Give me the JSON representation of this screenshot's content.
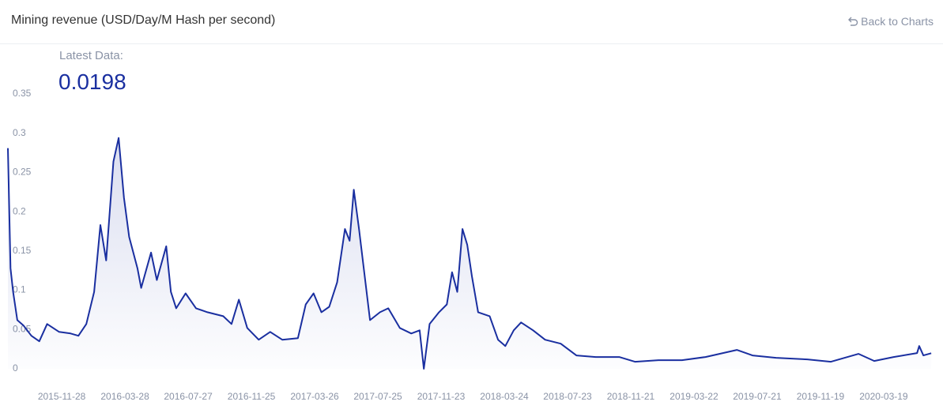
{
  "header": {
    "title": "Mining revenue (USD/Day/M Hash per second)",
    "back_link": "Back to Charts"
  },
  "latest": {
    "label": "Latest Data:",
    "value": 0.0198
  },
  "chart_data": {
    "type": "line",
    "color": "#1a2fa0",
    "x": [
      "2015-08-17",
      "2015-08-22",
      "2015-08-27",
      "2015-09-04",
      "2015-09-16",
      "2015-10-01",
      "2015-10-16",
      "2015-10-31",
      "2015-11-23",
      "2015-12-15",
      "2015-12-30",
      "2016-01-14",
      "2016-01-29",
      "2016-02-10",
      "2016-02-21",
      "2016-03-06",
      "2016-03-16",
      "2016-03-26",
      "2016-04-05",
      "2016-04-21",
      "2016-04-28",
      "2016-05-17",
      "2016-05-28",
      "2016-06-15",
      "2016-06-24",
      "2016-07-04",
      "2016-07-22",
      "2016-08-11",
      "2016-09-02",
      "2016-10-02",
      "2016-10-18",
      "2016-11-01",
      "2016-11-17",
      "2016-12-09",
      "2016-12-31",
      "2017-01-23",
      "2017-02-22",
      "2017-03-09",
      "2017-03-24",
      "2017-04-08",
      "2017-04-23",
      "2017-05-08",
      "2017-05-23",
      "2017-06-01",
      "2017-06-09",
      "2017-06-19",
      "2017-06-29",
      "2017-07-10",
      "2017-07-29",
      "2017-08-14",
      "2017-09-05",
      "2017-09-27",
      "2017-10-13",
      "2017-10-21",
      "2017-11-01",
      "2017-11-19",
      "2017-12-04",
      "2017-12-14",
      "2017-12-24",
      "2018-01-03",
      "2018-01-12",
      "2018-01-21",
      "2018-02-02",
      "2018-02-24",
      "2018-03-12",
      "2018-03-26",
      "2018-04-11",
      "2018-04-25",
      "2018-05-18",
      "2018-06-10",
      "2018-07-10",
      "2018-08-09",
      "2018-09-15",
      "2018-10-30",
      "2018-11-29",
      "2019-01-13",
      "2019-02-27",
      "2019-04-13",
      "2019-06-12",
      "2019-07-12",
      "2019-08-26",
      "2019-10-25",
      "2019-12-09",
      "2020-01-31",
      "2020-03-01",
      "2020-04-07",
      "2020-05-22",
      "2020-05-26",
      "2020-06-03",
      "2020-06-18"
    ],
    "values": [
      0.281,
      0.128,
      0.098,
      0.062,
      0.055,
      0.042,
      0.035,
      0.057,
      0.047,
      0.045,
      0.042,
      0.057,
      0.098,
      0.183,
      0.138,
      0.264,
      0.294,
      0.218,
      0.168,
      0.128,
      0.103,
      0.148,
      0.113,
      0.156,
      0.098,
      0.077,
      0.096,
      0.077,
      0.072,
      0.067,
      0.057,
      0.088,
      0.052,
      0.037,
      0.047,
      0.037,
      0.039,
      0.082,
      0.096,
      0.072,
      0.079,
      0.11,
      0.178,
      0.163,
      0.228,
      0.178,
      0.123,
      0.062,
      0.072,
      0.077,
      0.052,
      0.045,
      0.049,
      0.0,
      0.057,
      0.072,
      0.082,
      0.123,
      0.098,
      0.178,
      0.158,
      0.118,
      0.072,
      0.067,
      0.037,
      0.029,
      0.049,
      0.059,
      0.049,
      0.037,
      0.032,
      0.017,
      0.015,
      0.015,
      0.009,
      0.011,
      0.011,
      0.015,
      0.024,
      0.017,
      0.014,
      0.012,
      0.009,
      0.019,
      0.01,
      0.015,
      0.02,
      0.029,
      0.017,
      0.0198
    ],
    "xlim": [
      "2015-08-17",
      "2020-07-03"
    ],
    "xticks": [
      "2015-11-28",
      "2016-03-28",
      "2016-07-27",
      "2016-11-25",
      "2017-03-26",
      "2017-07-25",
      "2017-11-23",
      "2018-03-24",
      "2018-07-23",
      "2018-11-21",
      "2019-03-22",
      "2019-07-21",
      "2019-11-19",
      "2020-03-19"
    ],
    "ylim": [
      0,
      0.35
    ],
    "yticks": [
      0,
      0.05,
      0.1,
      0.15,
      0.2,
      0.25,
      0.3,
      0.35
    ],
    "grid": false
  }
}
